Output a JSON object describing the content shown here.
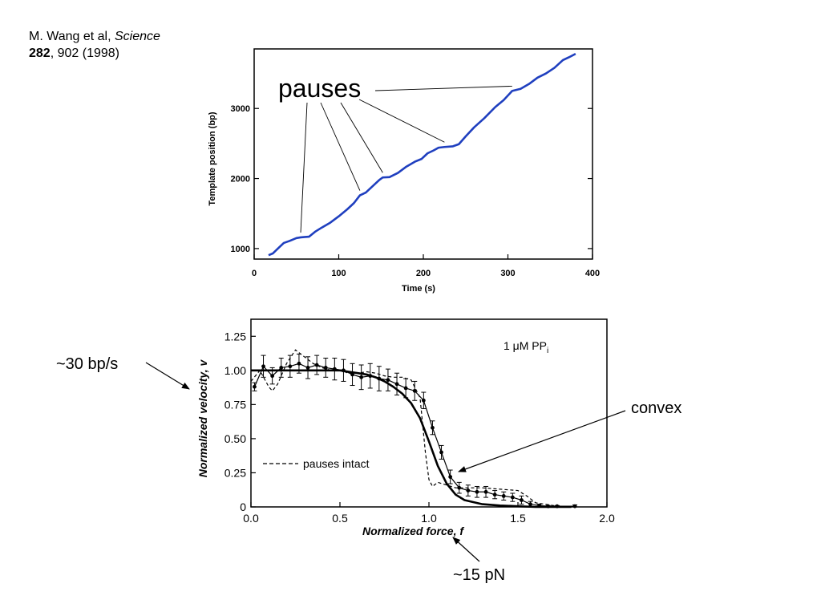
{
  "citation": {
    "authors": "M. Wang et al, ",
    "journal": "Science",
    "volume": "282",
    "rest": ", 902 (1998)"
  },
  "annotations": {
    "speed": "~30 bp/s",
    "convex": "convex",
    "force": "~15 pN"
  },
  "chart_data": [
    {
      "type": "line",
      "xlabel": "Time (s)",
      "ylabel": "Template position (bp)",
      "xlim": [
        0,
        400
      ],
      "ylim": [
        850,
        3850
      ],
      "xticks": [
        "0",
        "100",
        "200",
        "300",
        "400"
      ],
      "yticks": [
        "1000",
        "2000",
        "3000"
      ],
      "annotation": "pauses",
      "color": "#1f3fbf",
      "series": [
        {
          "x": [
            17,
            22,
            28,
            35,
            42,
            50,
            55,
            65,
            72,
            80,
            90,
            100,
            110,
            118,
            125,
            132,
            140,
            148,
            152,
            160,
            170,
            180,
            190,
            198,
            205,
            212,
            218,
            225,
            235,
            242,
            250,
            260,
            272,
            285,
            295,
            305,
            315,
            325,
            335,
            345,
            355,
            365,
            372,
            380
          ],
          "y": [
            905,
            930,
            1000,
            1080,
            1110,
            1150,
            1160,
            1170,
            1240,
            1300,
            1370,
            1460,
            1560,
            1650,
            1760,
            1800,
            1890,
            1980,
            2015,
            2020,
            2080,
            2170,
            2240,
            2280,
            2360,
            2400,
            2440,
            2450,
            2460,
            2490,
            2600,
            2730,
            2860,
            3020,
            3120,
            3250,
            3280,
            3350,
            3440,
            3500,
            3580,
            3690,
            3730,
            3780
          ]
        }
      ],
      "pause_points": [
        {
          "x": 55,
          "y": 1160
        },
        {
          "x": 125,
          "y": 1760
        },
        {
          "x": 152,
          "y": 2015
        },
        {
          "x": 225,
          "y": 2450
        },
        {
          "x": 305,
          "y": 3250
        }
      ]
    },
    {
      "type": "line",
      "xlabel": "Normalized force, f",
      "ylabel": "Normalized velocity, v",
      "xlim": [
        0,
        2
      ],
      "ylim": [
        0,
        1.375
      ],
      "xticks": [
        "0.0",
        "0.5",
        "1.0",
        "1.5",
        "2.0"
      ],
      "yticks": [
        "0",
        "0.25",
        "0.50",
        "0.75",
        "1.00",
        "1.25"
      ],
      "inset_label": {
        "main": "1 μM PP",
        "sub": "i"
      },
      "legend": "pauses intact",
      "series": [
        {
          "x": [
            0.0,
            0.05,
            0.1,
            0.15,
            0.2,
            0.25,
            0.3,
            0.35,
            0.4,
            0.45,
            0.5,
            0.55,
            0.6,
            0.65,
            0.7,
            0.75,
            0.8,
            0.85,
            0.9,
            0.95,
            1.0,
            1.05,
            1.1,
            1.15,
            1.2,
            1.3,
            1.4,
            1.5,
            1.6,
            1.7,
            1.8
          ],
          "y": [
            1.0,
            1.0,
            1.0,
            1.0,
            1.0,
            1.0,
            1.0,
            1.0,
            1.0,
            1.0,
            1.0,
            0.99,
            0.98,
            0.97,
            0.95,
            0.92,
            0.88,
            0.83,
            0.76,
            0.65,
            0.48,
            0.3,
            0.17,
            0.09,
            0.05,
            0.02,
            0.01,
            0.005,
            0.0,
            0.0,
            0.0
          ]
        },
        {
          "x": [
            0.02,
            0.07,
            0.12,
            0.17,
            0.22,
            0.27,
            0.32,
            0.37,
            0.42,
            0.47,
            0.52,
            0.57,
            0.62,
            0.67,
            0.72,
            0.77,
            0.82,
            0.87,
            0.92,
            0.97,
            1.02,
            1.07,
            1.12,
            1.17,
            1.22,
            1.27,
            1.32,
            1.37,
            1.42,
            1.47,
            1.52,
            1.57,
            1.62,
            1.67,
            1.72,
            1.82
          ],
          "y": [
            0.88,
            1.03,
            0.96,
            1.02,
            1.03,
            1.05,
            1.02,
            1.04,
            1.02,
            1.01,
            1.0,
            0.97,
            0.95,
            0.96,
            0.94,
            0.93,
            0.9,
            0.87,
            0.85,
            0.78,
            0.58,
            0.4,
            0.22,
            0.14,
            0.12,
            0.11,
            0.11,
            0.09,
            0.08,
            0.07,
            0.05,
            0.02,
            0.01,
            0.005,
            0.005,
            0.005
          ],
          "err": [
            0.03,
            0.08,
            0.06,
            0.07,
            0.08,
            0.07,
            0.08,
            0.07,
            0.07,
            0.08,
            0.08,
            0.08,
            0.09,
            0.09,
            0.09,
            0.08,
            0.08,
            0.07,
            0.07,
            0.06,
            0.05,
            0.05,
            0.05,
            0.04,
            0.04,
            0.04,
            0.04,
            0.03,
            0.03,
            0.03,
            0.03,
            0.02,
            0.01,
            0.005,
            0.005,
            0.01
          ]
        },
        {
          "name": "pauses intact",
          "style": "dashed",
          "x": [
            0.0,
            0.05,
            0.1,
            0.12,
            0.15,
            0.2,
            0.25,
            0.3,
            0.35,
            0.4,
            0.45,
            0.5,
            0.55,
            0.6,
            0.65,
            0.7,
            0.75,
            0.8,
            0.85,
            0.9,
            0.95,
            0.98,
            1.0,
            1.02,
            1.05,
            1.1,
            1.15,
            1.2,
            1.3,
            1.4,
            1.5,
            1.55,
            1.6,
            1.7,
            1.8
          ],
          "y": [
            0.92,
            1.0,
            0.88,
            0.85,
            0.9,
            1.05,
            1.15,
            1.1,
            1.05,
            1.02,
            1.0,
            1.0,
            0.98,
            0.98,
            0.99,
            0.98,
            0.96,
            0.95,
            0.95,
            0.93,
            0.8,
            0.4,
            0.2,
            0.15,
            0.18,
            0.16,
            0.14,
            0.14,
            0.14,
            0.13,
            0.12,
            0.08,
            0.03,
            0.01,
            0.0
          ]
        }
      ]
    }
  ]
}
